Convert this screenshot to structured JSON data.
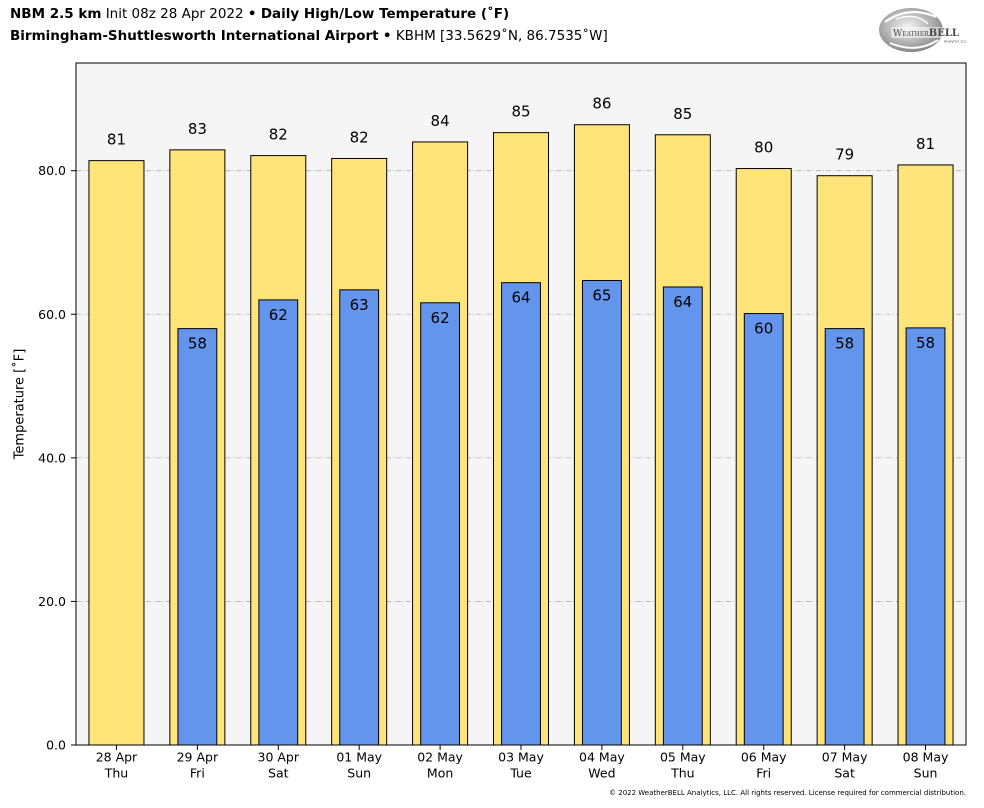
{
  "header": {
    "model": "NBM 2.5 km",
    "init": "Init 08z 28 Apr 2022",
    "separator": "•",
    "station_name": "Birmingham-Shuttlesworth International Airport",
    "station_info": "KBHM [33.5629˚N, 86.7535˚W]"
  },
  "logo": {
    "text_small": "Weather",
    "text_large": "BELL",
    "subtext": "Analytics LLC"
  },
  "footer": {
    "copyright": "© 2022 WeatherBELL Analytics, LLC. All rights reserved. License required for commercial distribution."
  },
  "chart_data": {
    "type": "bar",
    "title": "Daily High/Low Temperature (˚F)",
    "xlabel": "",
    "ylabel": "Temperature [˚F]",
    "categories": [
      "28 Apr",
      "29 Apr",
      "30 Apr",
      "01 May",
      "02 May",
      "03 May",
      "04 May",
      "05 May",
      "06 May",
      "07 May",
      "08 May"
    ],
    "category_weekdays": [
      "Thu",
      "Fri",
      "Sat",
      "Sun",
      "Mon",
      "Tue",
      "Wed",
      "Thu",
      "Fri",
      "Sat",
      "Sun"
    ],
    "ylim": [
      0,
      95
    ],
    "yticks": [
      0,
      20,
      40,
      60,
      80
    ],
    "ytick_labels": [
      "0.0",
      "20.0",
      "40.0",
      "60.0",
      "80.0"
    ],
    "grid": true,
    "plot_background": "#F5F5F5",
    "series": [
      {
        "values": [
          81.4,
          82.9,
          82.1,
          81.7,
          84.0,
          85.3,
          86.4,
          85.0,
          80.3,
          79.3,
          80.8
        ],
        "labels": [
          "81",
          "83",
          "82",
          "82",
          "84",
          "85",
          "86",
          "85",
          "80",
          "79",
          "81"
        ],
        "color": "#FFE47A"
      },
      {
        "values": [
          null,
          58.0,
          62.0,
          63.4,
          61.6,
          64.4,
          64.7,
          63.8,
          60.1,
          58.0,
          58.1
        ],
        "labels": [
          null,
          "58",
          "62",
          "63",
          "62",
          "64",
          "65",
          "64",
          "60",
          "58",
          "58"
        ],
        "color": "#6495ED"
      }
    ]
  }
}
